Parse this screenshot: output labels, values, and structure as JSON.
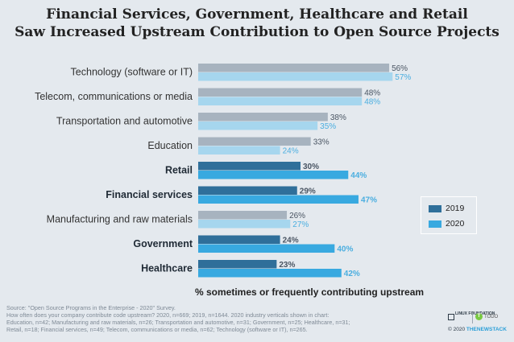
{
  "title_line1": "Financial Services, Government, Healthcare and Retail",
  "title_line2": "Saw Increased Upstream Contribution to Open Source Projects",
  "axis_label": "% sometimes or frequently contributing upstream",
  "source_lines": [
    "Source: \"Open Source Programs in the Enterprise - 2020\" Survey.",
    "How often does your company contribute code upstream? 2020, n=669; 2019, n=1644. 2020 industry verticals shown in chart:",
    "Education, n=42; Manufacturing and raw materials, n=26; Transportation and automotive, n=31; Government, n=25; Healthcare, n=31;",
    "Retail, n=18; Financial services, n=49; Telecom, communications or media, n=62; Technology (software or IT), n=265."
  ],
  "logos": {
    "linux_foundation": "LINUX FOUNDATION",
    "todo": "TODO",
    "copyright": "© 2020",
    "tns": "THENEWSTACK"
  },
  "colors": {
    "2019_highlight": "#2f6f9a",
    "2020_highlight": "#38a9e0",
    "2019_muted": "#a7b3bf",
    "2020_muted": "#a6d6ee",
    "value_2019": "#4a5563",
    "value_2020": "#4aaee0"
  },
  "chart_data": {
    "type": "bar",
    "orientation": "horizontal",
    "categories": [
      "Technology (software or IT)",
      "Telecom, communications or media",
      "Transportation and automotive",
      "Education",
      "Retail",
      "Financial services",
      "Manufacturing and raw materials",
      "Government",
      "Healthcare"
    ],
    "highlighted": [
      false,
      false,
      false,
      false,
      true,
      true,
      false,
      true,
      true
    ],
    "series": [
      {
        "name": "2019",
        "values": [
          56,
          48,
          38,
          33,
          30,
          29,
          26,
          24,
          23
        ]
      },
      {
        "name": "2020",
        "values": [
          57,
          48,
          35,
          24,
          44,
          47,
          27,
          40,
          42
        ]
      }
    ],
    "value_suffix": "%",
    "xlabel": "% sometimes or frequently contributing upstream",
    "xlim": [
      0,
      60
    ],
    "grid": false,
    "legend_position": "right"
  }
}
